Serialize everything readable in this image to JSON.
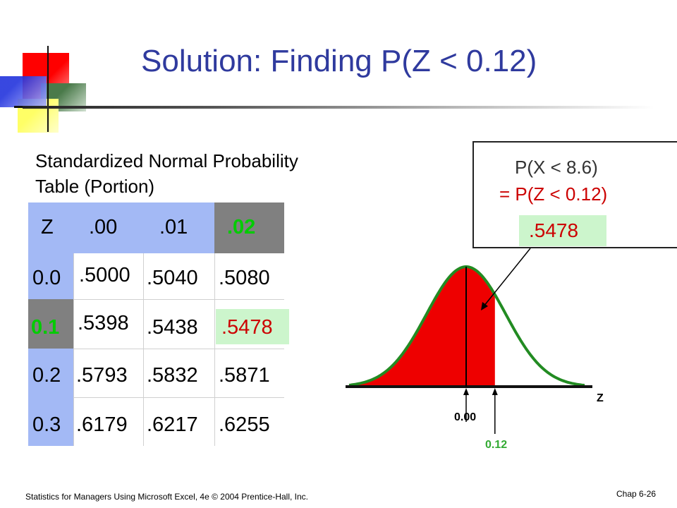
{
  "slide": {
    "title": "Solution: Finding P(Z < 0.12)",
    "footer_left": "Statistics for Managers Using Microsoft Excel, 4e © 2004 Prentice-Hall, Inc.",
    "footer_right": "Chap 6-26"
  },
  "table": {
    "caption_line1": "Standardized  Normal Probability",
    "caption_line2": "Table (Portion)",
    "headers": [
      "Z",
      ".00",
      ".01",
      ".02"
    ],
    "rows": [
      {
        "z": "0.0",
        "v00": ".5000",
        "v01": ".5040",
        "v02": ".5080"
      },
      {
        "z": "0.1",
        "v00": ".5398",
        "v01": ".5438",
        "v02": ".5478"
      },
      {
        "z": "0.2",
        "v00": ".5793",
        "v01": ".5832",
        "v02": ".5871"
      },
      {
        "z": "0.3",
        "v00": ".6179",
        "v01": ".6217",
        "v02": ".6255"
      }
    ],
    "highlighted_row_label": "0.1",
    "highlighted_col_label": ".02",
    "highlighted_value": ".5478"
  },
  "result_box": {
    "line1": "P(X < 8.6)",
    "line2": "= P(Z < 0.12)",
    "value": ".5478"
  },
  "curve": {
    "axis_label": "Z",
    "mean_label": "0.00",
    "cutoff_label": "0.12",
    "cutoff_z": 0.12
  },
  "colors": {
    "title": "#2f3a9e",
    "header_band": "#a3b9f5",
    "highlight_gray": "#808080",
    "highlight_green_text": "#00cc00",
    "value_bg": "#ccf5cc",
    "value_text": "#cc0000",
    "curve_fill": "#ee0000",
    "curve_stroke": "#228b22",
    "cutoff_label": "#33aa33"
  }
}
